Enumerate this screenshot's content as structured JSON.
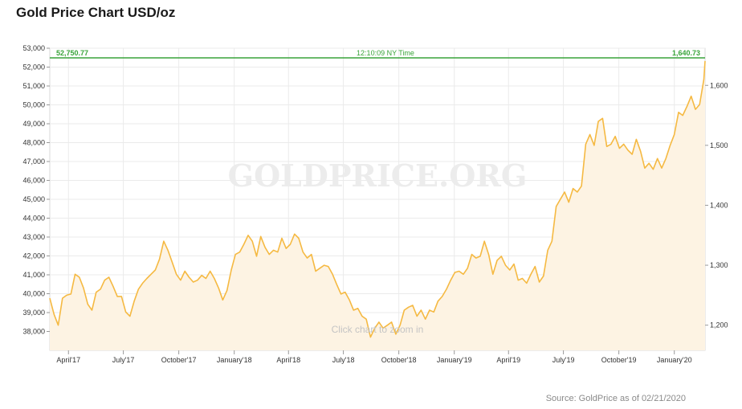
{
  "title": "Gold Price Chart USD/oz",
  "source": "Source: GoldPrice as of 02/21/2020",
  "colors": {
    "line": "#f5b942",
    "fill": "#fdf3e3",
    "current": "#39a43a",
    "grid": "#e6e6e6"
  },
  "chart_data": {
    "type": "area",
    "title": "Gold Price Chart USD/oz",
    "watermark": "GOLDPRICE.ORG",
    "hint": "Click chart to zoom in",
    "time_label": "12:10:09 NY Time",
    "current_left_label": "52,750.77",
    "current_right_label": "1,640.73",
    "current_value_usd": 1640.73,
    "x_ticks": [
      "April'17",
      "July'17",
      "October'17",
      "January'18",
      "April'18",
      "July'18",
      "October'18",
      "January'19",
      "April'19",
      "July'19",
      "October'19",
      "January'20"
    ],
    "x_tick_dates": [
      "2017-04-01",
      "2017-07-01",
      "2017-10-01",
      "2018-01-01",
      "2018-04-01",
      "2018-07-01",
      "2018-10-01",
      "2019-01-01",
      "2019-04-01",
      "2019-07-01",
      "2019-10-01",
      "2020-01-01"
    ],
    "xlim": [
      "2017-03-01",
      "2020-02-21"
    ],
    "left_axis_ticks": [
      "38,000",
      "39,000",
      "40,000",
      "41,000",
      "42,000",
      "43,000",
      "44,000",
      "45,000",
      "46,000",
      "47,000",
      "48,000",
      "49,000",
      "50,000",
      "51,000",
      "52,000",
      "53,000"
    ],
    "right_axis_ticks": [
      "1,200",
      "1,300",
      "1,400",
      "1,500",
      "1,600"
    ],
    "left_ylim": [
      37000,
      53000
    ],
    "right_ylim": [
      1158,
      1662
    ],
    "grid": true,
    "series": [
      {
        "values": [
          [
            "2017-03-01",
            1245
          ],
          [
            "2017-03-08",
            1218
          ],
          [
            "2017-03-15",
            1200
          ],
          [
            "2017-03-22",
            1245
          ],
          [
            "2017-03-29",
            1250
          ],
          [
            "2017-04-05",
            1252
          ],
          [
            "2017-04-12",
            1285
          ],
          [
            "2017-04-19",
            1280
          ],
          [
            "2017-04-26",
            1262
          ],
          [
            "2017-05-03",
            1235
          ],
          [
            "2017-05-10",
            1225
          ],
          [
            "2017-05-17",
            1255
          ],
          [
            "2017-05-24",
            1260
          ],
          [
            "2017-05-31",
            1275
          ],
          [
            "2017-06-07",
            1280
          ],
          [
            "2017-06-14",
            1265
          ],
          [
            "2017-06-21",
            1248
          ],
          [
            "2017-06-28",
            1248
          ],
          [
            "2017-07-05",
            1222
          ],
          [
            "2017-07-12",
            1215
          ],
          [
            "2017-07-19",
            1240
          ],
          [
            "2017-07-26",
            1260
          ],
          [
            "2017-08-02",
            1270
          ],
          [
            "2017-08-09",
            1278
          ],
          [
            "2017-08-16",
            1285
          ],
          [
            "2017-08-23",
            1292
          ],
          [
            "2017-08-30",
            1310
          ],
          [
            "2017-09-06",
            1340
          ],
          [
            "2017-09-13",
            1325
          ],
          [
            "2017-09-20",
            1305
          ],
          [
            "2017-09-27",
            1285
          ],
          [
            "2017-10-04",
            1275
          ],
          [
            "2017-10-11",
            1290
          ],
          [
            "2017-10-18",
            1280
          ],
          [
            "2017-10-25",
            1272
          ],
          [
            "2017-11-01",
            1275
          ],
          [
            "2017-11-08",
            1283
          ],
          [
            "2017-11-15",
            1278
          ],
          [
            "2017-11-22",
            1290
          ],
          [
            "2017-11-29",
            1278
          ],
          [
            "2017-12-06",
            1262
          ],
          [
            "2017-12-13",
            1242
          ],
          [
            "2017-12-20",
            1258
          ],
          [
            "2017-12-27",
            1292
          ],
          [
            "2018-01-03",
            1318
          ],
          [
            "2018-01-10",
            1322
          ],
          [
            "2018-01-17",
            1335
          ],
          [
            "2018-01-24",
            1350
          ],
          [
            "2018-01-31",
            1340
          ],
          [
            "2018-02-07",
            1315
          ],
          [
            "2018-02-14",
            1348
          ],
          [
            "2018-02-21",
            1330
          ],
          [
            "2018-02-28",
            1318
          ],
          [
            "2018-03-07",
            1325
          ],
          [
            "2018-03-14",
            1322
          ],
          [
            "2018-03-21",
            1345
          ],
          [
            "2018-03-28",
            1328
          ],
          [
            "2018-04-04",
            1335
          ],
          [
            "2018-04-11",
            1352
          ],
          [
            "2018-04-18",
            1345
          ],
          [
            "2018-04-25",
            1322
          ],
          [
            "2018-05-02",
            1312
          ],
          [
            "2018-05-09",
            1318
          ],
          [
            "2018-05-16",
            1290
          ],
          [
            "2018-05-23",
            1295
          ],
          [
            "2018-05-30",
            1300
          ],
          [
            "2018-06-06",
            1298
          ],
          [
            "2018-06-13",
            1285
          ],
          [
            "2018-06-20",
            1268
          ],
          [
            "2018-06-27",
            1252
          ],
          [
            "2018-07-04",
            1255
          ],
          [
            "2018-07-11",
            1242
          ],
          [
            "2018-07-18",
            1225
          ],
          [
            "2018-07-25",
            1228
          ],
          [
            "2018-08-01",
            1215
          ],
          [
            "2018-08-08",
            1210
          ],
          [
            "2018-08-15",
            1180
          ],
          [
            "2018-08-22",
            1195
          ],
          [
            "2018-08-29",
            1205
          ],
          [
            "2018-09-05",
            1195
          ],
          [
            "2018-09-12",
            1200
          ],
          [
            "2018-09-19",
            1205
          ],
          [
            "2018-09-26",
            1185
          ],
          [
            "2018-10-03",
            1200
          ],
          [
            "2018-10-10",
            1225
          ],
          [
            "2018-10-17",
            1230
          ],
          [
            "2018-10-24",
            1233
          ],
          [
            "2018-10-31",
            1215
          ],
          [
            "2018-11-07",
            1225
          ],
          [
            "2018-11-14",
            1210
          ],
          [
            "2018-11-21",
            1225
          ],
          [
            "2018-11-28",
            1222
          ],
          [
            "2018-12-05",
            1240
          ],
          [
            "2018-12-12",
            1248
          ],
          [
            "2018-12-19",
            1260
          ],
          [
            "2018-12-26",
            1275
          ],
          [
            "2019-01-02",
            1288
          ],
          [
            "2019-01-09",
            1290
          ],
          [
            "2019-01-16",
            1285
          ],
          [
            "2019-01-23",
            1295
          ],
          [
            "2019-01-30",
            1318
          ],
          [
            "2019-02-06",
            1312
          ],
          [
            "2019-02-13",
            1315
          ],
          [
            "2019-02-20",
            1340
          ],
          [
            "2019-02-27",
            1318
          ],
          [
            "2019-03-06",
            1285
          ],
          [
            "2019-03-13",
            1308
          ],
          [
            "2019-03-20",
            1315
          ],
          [
            "2019-03-27",
            1300
          ],
          [
            "2019-04-03",
            1292
          ],
          [
            "2019-04-10",
            1302
          ],
          [
            "2019-04-17",
            1275
          ],
          [
            "2019-04-24",
            1278
          ],
          [
            "2019-05-01",
            1270
          ],
          [
            "2019-05-08",
            1285
          ],
          [
            "2019-05-15",
            1298
          ],
          [
            "2019-05-22",
            1272
          ],
          [
            "2019-05-29",
            1282
          ],
          [
            "2019-06-05",
            1325
          ],
          [
            "2019-06-12",
            1340
          ],
          [
            "2019-06-19",
            1398
          ],
          [
            "2019-06-26",
            1410
          ],
          [
            "2019-07-03",
            1422
          ],
          [
            "2019-07-10",
            1405
          ],
          [
            "2019-07-17",
            1428
          ],
          [
            "2019-07-24",
            1422
          ],
          [
            "2019-07-31",
            1432
          ],
          [
            "2019-08-07",
            1502
          ],
          [
            "2019-08-14",
            1518
          ],
          [
            "2019-08-21",
            1500
          ],
          [
            "2019-08-28",
            1540
          ],
          [
            "2019-09-04",
            1545
          ],
          [
            "2019-09-11",
            1498
          ],
          [
            "2019-09-18",
            1502
          ],
          [
            "2019-09-25",
            1515
          ],
          [
            "2019-10-02",
            1495
          ],
          [
            "2019-10-09",
            1502
          ],
          [
            "2019-10-16",
            1492
          ],
          [
            "2019-10-23",
            1485
          ],
          [
            "2019-10-30",
            1510
          ],
          [
            "2019-11-06",
            1490
          ],
          [
            "2019-11-13",
            1462
          ],
          [
            "2019-11-20",
            1470
          ],
          [
            "2019-11-27",
            1460
          ],
          [
            "2019-12-04",
            1478
          ],
          [
            "2019-12-11",
            1462
          ],
          [
            "2019-12-18",
            1478
          ],
          [
            "2019-12-25",
            1500
          ],
          [
            "2020-01-01",
            1518
          ],
          [
            "2020-01-08",
            1555
          ],
          [
            "2020-01-15",
            1550
          ],
          [
            "2020-01-22",
            1565
          ],
          [
            "2020-01-29",
            1582
          ],
          [
            "2020-02-05",
            1560
          ],
          [
            "2020-02-12",
            1568
          ],
          [
            "2020-02-19",
            1610
          ],
          [
            "2020-02-21",
            1640.73
          ]
        ]
      }
    ]
  }
}
